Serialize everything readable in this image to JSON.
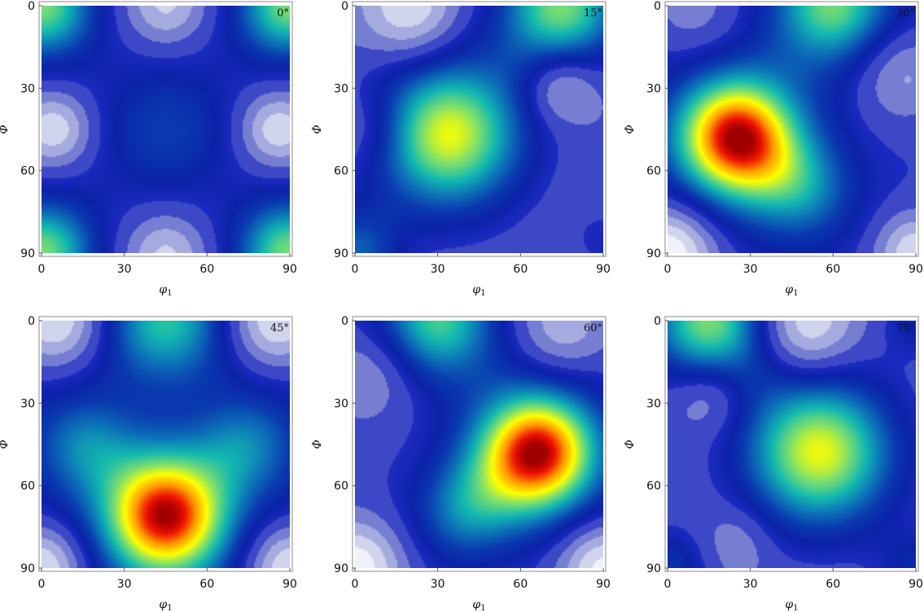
{
  "chart_data": [
    {
      "type": "heatmap",
      "annotation": "0°",
      "xlabel": "φ1",
      "ylabel": "Φ",
      "xlim": [
        0,
        90
      ],
      "ylim": [
        0,
        90
      ],
      "y_inverted": true,
      "xticks": [
        "0",
        "30",
        "60",
        "90"
      ],
      "yticks": [
        "0",
        "30",
        "60",
        "90"
      ],
      "background_level": 0.3,
      "peaks": [
        {
          "phi1": 45,
          "Phi": 45,
          "amplitude": 0.52,
          "width": 22
        },
        {
          "phi1": 0,
          "Phi": 0,
          "amplitude": 0.75,
          "width": 15
        },
        {
          "phi1": 90,
          "Phi": 0,
          "amplitude": 0.75,
          "width": 15
        },
        {
          "phi1": 0,
          "Phi": 90,
          "amplitude": 0.75,
          "width": 15
        },
        {
          "phi1": 90,
          "Phi": 90,
          "amplitude": 0.75,
          "width": 15
        }
      ],
      "lows": [
        {
          "phi1": 5,
          "Phi": 45,
          "amplitude": 0.25,
          "width": 9
        },
        {
          "phi1": 85,
          "Phi": 45,
          "amplitude": 0.25,
          "width": 9
        },
        {
          "phi1": 45,
          "Phi": 0,
          "amplitude": 0.2,
          "width": 10
        },
        {
          "phi1": 45,
          "Phi": 90,
          "amplitude": 0.2,
          "width": 10
        }
      ]
    },
    {
      "type": "heatmap",
      "annotation": "15°",
      "xlabel": "φ1",
      "ylabel": "Φ",
      "xlim": [
        0,
        90
      ],
      "ylim": [
        0,
        90
      ],
      "y_inverted": true,
      "xticks": [
        "0",
        "30",
        "60",
        "90"
      ],
      "yticks": [
        "0",
        "30",
        "60",
        "90"
      ],
      "background_level": 0.3,
      "peaks": [
        {
          "phi1": 34,
          "Phi": 47,
          "amplitude": 0.82,
          "width": 21
        },
        {
          "phi1": 75,
          "Phi": 0,
          "amplitude": 0.75,
          "width": 17
        },
        {
          "phi1": 0,
          "Phi": 90,
          "amplitude": 0.55,
          "width": 12
        },
        {
          "phi1": 90,
          "Phi": 85,
          "amplitude": 0.4,
          "width": 9
        }
      ],
      "lows": [
        {
          "phi1": 20,
          "Phi": 2,
          "amplitude": 0.25,
          "width": 12
        },
        {
          "phi1": 75,
          "Phi": 30,
          "amplitude": 0.2,
          "width": 9
        },
        {
          "phi1": 5,
          "Phi": 45,
          "amplitude": 0.1,
          "width": 10
        }
      ]
    },
    {
      "type": "heatmap",
      "annotation": "30°",
      "xlabel": "φ1",
      "ylabel": "Φ",
      "xlim": [
        0,
        90
      ],
      "ylim": [
        0,
        90
      ],
      "y_inverted": true,
      "xticks": [
        "0",
        "30",
        "60",
        "90"
      ],
      "yticks": [
        "0",
        "30",
        "60",
        "90"
      ],
      "background_level": 0.38,
      "peaks": [
        {
          "phi1": 25,
          "Phi": 48,
          "amplitude": 1.0,
          "width": 17
        },
        {
          "phi1": 50,
          "Phi": 68,
          "amplitude": 0.58,
          "width": 14
        },
        {
          "phi1": 60,
          "Phi": 0,
          "amplitude": 0.75,
          "width": 16
        }
      ],
      "lows": [
        {
          "phi1": 0,
          "Phi": 90,
          "amplitude": 0.38,
          "width": 12
        },
        {
          "phi1": 90,
          "Phi": 90,
          "amplitude": 0.3,
          "width": 10
        },
        {
          "phi1": 85,
          "Phi": 25,
          "amplitude": 0.18,
          "width": 12
        },
        {
          "phi1": 10,
          "Phi": 2,
          "amplitude": 0.12,
          "width": 12
        }
      ]
    },
    {
      "type": "heatmap",
      "annotation": "45°",
      "xlabel": "φ1",
      "ylabel": "Φ",
      "xlim": [
        0,
        90
      ],
      "ylim": [
        0,
        90
      ],
      "y_inverted": true,
      "xticks": [
        "0",
        "30",
        "60",
        "90"
      ],
      "yticks": [
        "0",
        "30",
        "60",
        "90"
      ],
      "background_level": 0.42,
      "peaks": [
        {
          "phi1": 45,
          "Phi": 71,
          "amplitude": 1.0,
          "width": 17
        },
        {
          "phi1": 15,
          "Phi": 45,
          "amplitude": 0.6,
          "width": 13
        },
        {
          "phi1": 75,
          "Phi": 45,
          "amplitude": 0.6,
          "width": 13
        },
        {
          "phi1": 45,
          "Phi": 0,
          "amplitude": 0.7,
          "width": 16
        }
      ],
      "lows": [
        {
          "phi1": 5,
          "Phi": 0,
          "amplitude": 0.35,
          "width": 12
        },
        {
          "phi1": 85,
          "Phi": 0,
          "amplitude": 0.35,
          "width": 12
        },
        {
          "phi1": 0,
          "Phi": 90,
          "amplitude": 0.35,
          "width": 11
        },
        {
          "phi1": 90,
          "Phi": 90,
          "amplitude": 0.35,
          "width": 11
        }
      ]
    },
    {
      "type": "heatmap",
      "annotation": "60°",
      "xlabel": "φ1",
      "ylabel": "Φ",
      "xlim": [
        0,
        90
      ],
      "ylim": [
        0,
        90
      ],
      "y_inverted": true,
      "xticks": [
        "0",
        "30",
        "60",
        "90"
      ],
      "yticks": [
        "0",
        "30",
        "60",
        "90"
      ],
      "background_level": 0.36,
      "peaks": [
        {
          "phi1": 66,
          "Phi": 48,
          "amplitude": 1.0,
          "width": 17
        },
        {
          "phi1": 39,
          "Phi": 70,
          "amplitude": 0.58,
          "width": 14
        },
        {
          "phi1": 30,
          "Phi": 0,
          "amplitude": 0.72,
          "width": 16
        }
      ],
      "lows": [
        {
          "phi1": 0,
          "Phi": 90,
          "amplitude": 0.35,
          "width": 12
        },
        {
          "phi1": 90,
          "Phi": 90,
          "amplitude": 0.32,
          "width": 11
        },
        {
          "phi1": 75,
          "Phi": 2,
          "amplitude": 0.2,
          "width": 12
        },
        {
          "phi1": 5,
          "Phi": 20,
          "amplitude": 0.15,
          "width": 12
        }
      ]
    },
    {
      "type": "heatmap",
      "annotation": "75°",
      "xlabel": "φ1",
      "ylabel": "Φ",
      "xlim": [
        0,
        90
      ],
      "ylim": [
        0,
        90
      ],
      "y_inverted": true,
      "xticks": [
        "0",
        "30",
        "60",
        "90"
      ],
      "yticks": [
        "0",
        "30",
        "60",
        "90"
      ],
      "background_level": 0.3,
      "peaks": [
        {
          "phi1": 55,
          "Phi": 48,
          "amplitude": 0.82,
          "width": 21
        },
        {
          "phi1": 15,
          "Phi": 0,
          "amplitude": 0.75,
          "width": 17
        },
        {
          "phi1": 0,
          "Phi": 90,
          "amplitude": 0.5,
          "width": 11
        },
        {
          "phi1": 90,
          "Phi": 90,
          "amplitude": 0.45,
          "width": 10
        },
        {
          "phi1": 90,
          "Phi": 0,
          "amplitude": 0.45,
          "width": 9
        }
      ],
      "lows": [
        {
          "phi1": 50,
          "Phi": 2,
          "amplitude": 0.28,
          "width": 12
        },
        {
          "phi1": 15,
          "Phi": 28,
          "amplitude": 0.15,
          "width": 9
        },
        {
          "phi1": 25,
          "Phi": 80,
          "amplitude": 0.1,
          "width": 9
        }
      ]
    }
  ],
  "colormap": {
    "name": "mtex-like",
    "stops": [
      "#ffffff",
      "#d8dcf0",
      "#9fa6dc",
      "#5f69cc",
      "#1c2bc0",
      "#0b22a8",
      "#0a3aaf",
      "#0c75b8",
      "#13b9b0",
      "#7fe06c",
      "#ffff00",
      "#ff9900",
      "#ee1100",
      "#a00000"
    ],
    "positions": [
      0.0,
      0.1,
      0.2,
      0.3,
      0.38,
      0.45,
      0.52,
      0.6,
      0.68,
      0.76,
      0.83,
      0.9,
      0.96,
      1.0
    ],
    "bands_below": 0.38,
    "band_count": 5
  }
}
